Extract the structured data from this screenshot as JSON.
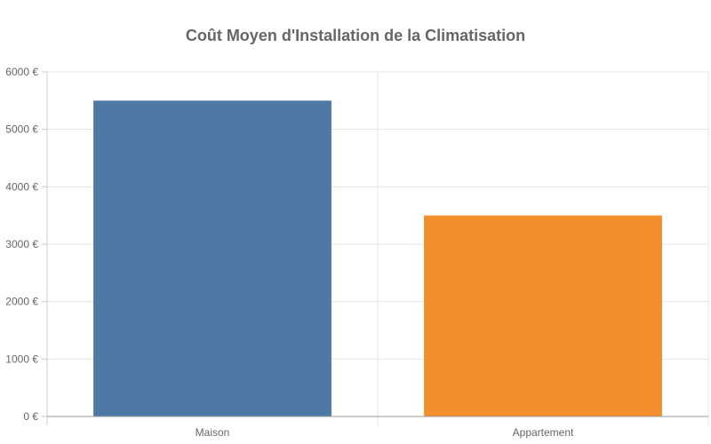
{
  "chart_data": {
    "type": "bar",
    "title": "Coût Moyen d'Installation de la Climatisation",
    "categories": [
      "Maison",
      "Appartement"
    ],
    "values": [
      5500,
      3500
    ],
    "colors": [
      "#4e79a7",
      "#f28e2b"
    ],
    "ylim": [
      0,
      6000
    ],
    "ytick_values": [
      0,
      1000,
      2000,
      3000,
      4000,
      5000,
      6000
    ],
    "ytick_labels": [
      "0 €",
      "1000 €",
      "2000 €",
      "3000 €",
      "4000 €",
      "5000 €",
      "6000 €"
    ],
    "grid": true,
    "xlabel": "",
    "ylabel": ""
  }
}
